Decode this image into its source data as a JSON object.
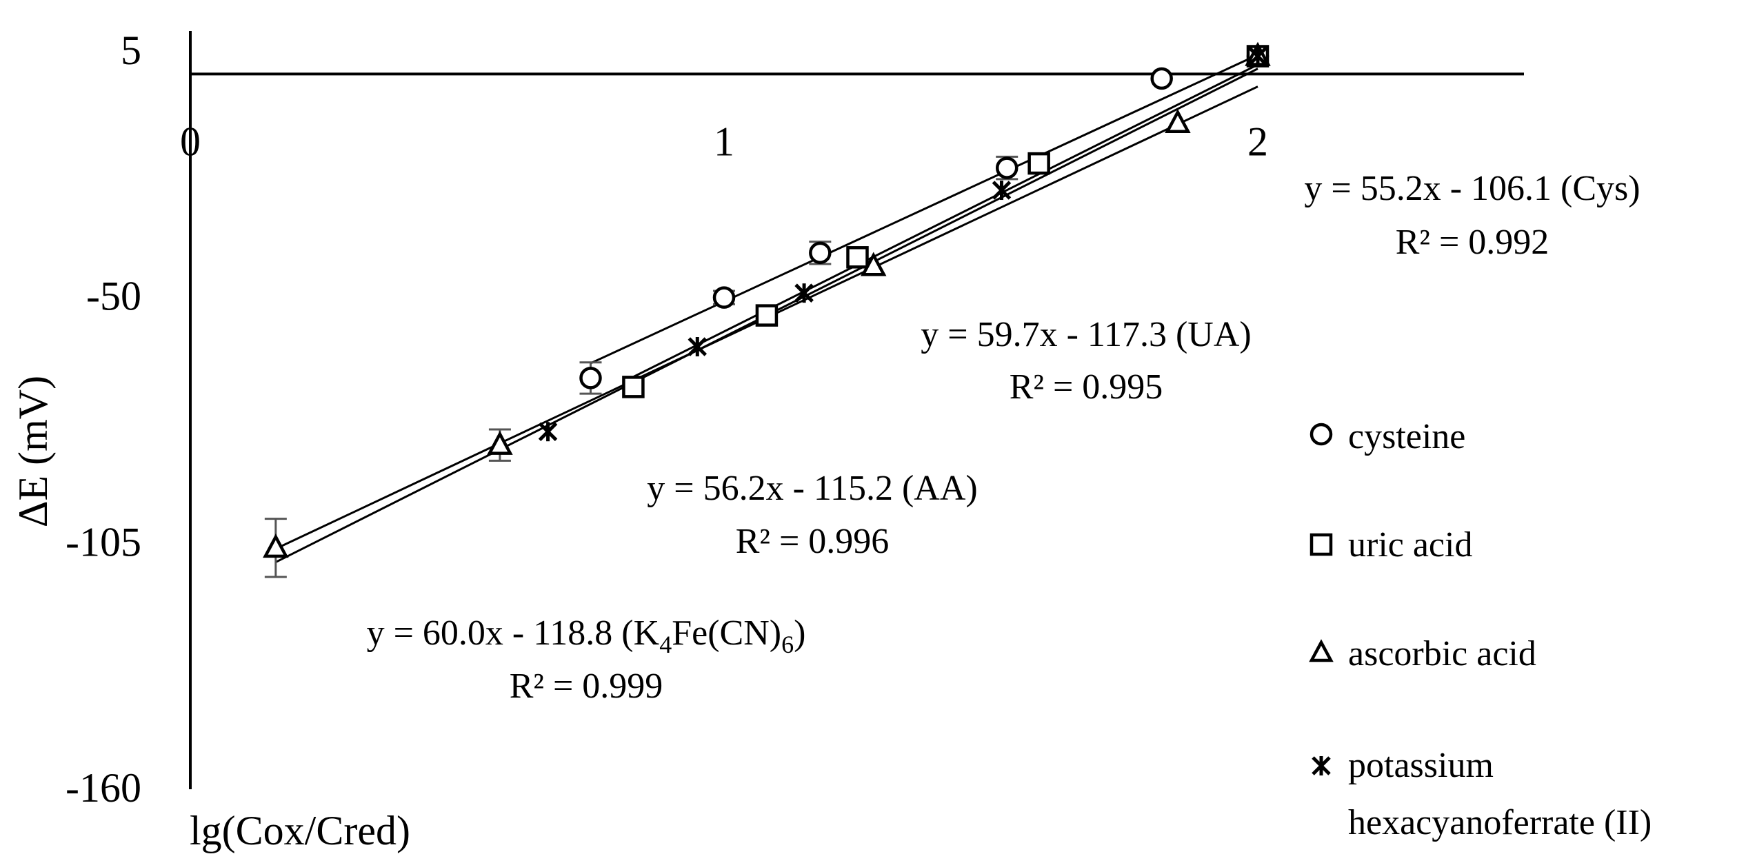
{
  "chart_data": {
    "type": "scatter",
    "title": "",
    "xlabel": "lg(Cox/Cred)",
    "ylabel": "ΔE (mV)",
    "xlim": [
      0,
      2.5
    ],
    "ylim": [
      -160,
      5
    ],
    "x_ticks": [
      "0",
      "1",
      "2"
    ],
    "x_tick_values": [
      0,
      1,
      2
    ],
    "y_ticks": [
      "5",
      "-50",
      "-105",
      "-160"
    ],
    "y_tick_values": [
      5,
      -50,
      -105,
      -160
    ],
    "grid": false,
    "legend_position": "right",
    "series": [
      {
        "name": "cysteine",
        "marker": "circle",
        "points": [
          {
            "x": 0.75,
            "y": -68,
            "err": 3.5
          },
          {
            "x": 1.0,
            "y": -50,
            "err": 1.5
          },
          {
            "x": 1.18,
            "y": -40,
            "err": 2.5
          },
          {
            "x": 1.53,
            "y": -21,
            "err": 2.5
          },
          {
            "x": 1.82,
            "y": -1,
            "err": 0
          },
          {
            "x": 2.0,
            "y": 4,
            "err": 0
          }
        ],
        "fit": {
          "slope": 55.2,
          "intercept": -106.1,
          "x_range": [
            0.75,
            2.0
          ]
        },
        "equation": "y = 55.2x - 106.1 (Cys)",
        "r2": "R² = 0.992"
      },
      {
        "name": "uric acid",
        "marker": "square",
        "points": [
          {
            "x": 0.83,
            "y": -70,
            "err": 0
          },
          {
            "x": 1.08,
            "y": -54,
            "err": 0
          },
          {
            "x": 1.25,
            "y": -41,
            "err": 1.5
          },
          {
            "x": 1.59,
            "y": -20,
            "err": 0
          },
          {
            "x": 2.0,
            "y": 4,
            "err": 0
          }
        ],
        "fit": {
          "slope": 59.7,
          "intercept": -117.3,
          "x_range": [
            0.83,
            2.0
          ]
        },
        "equation": "y = 59.7x - 117.3 (UA)",
        "r2": "R² = 0.995"
      },
      {
        "name": "ascorbic acid",
        "marker": "triangle",
        "points": [
          {
            "x": 0.16,
            "y": -106,
            "err": 6.5
          },
          {
            "x": 0.58,
            "y": -83,
            "err": 3.5
          },
          {
            "x": 1.28,
            "y": -43,
            "err": 0
          },
          {
            "x": 1.85,
            "y": -11,
            "err": 0
          },
          {
            "x": 2.0,
            "y": 4,
            "err": 0
          }
        ],
        "fit": {
          "slope": 56.2,
          "intercept": -115.2,
          "x_range": [
            0.16,
            2.0
          ]
        },
        "equation": "y = 56.2x - 115.2 (AA)",
        "r2": "R² = 0.996"
      },
      {
        "name": "potassium hexacyanoferrate (II)",
        "legend_lines": [
          "potassium",
          "hexacyanoferrate (II)"
        ],
        "marker": "asterisk",
        "points": [
          {
            "x": 0.67,
            "y": -80,
            "err": 0
          },
          {
            "x": 0.95,
            "y": -61,
            "err": 0
          },
          {
            "x": 1.15,
            "y": -49,
            "err": 0
          },
          {
            "x": 1.52,
            "y": -26,
            "err": 0
          },
          {
            "x": 2.0,
            "y": 4,
            "err": 0
          }
        ],
        "fit": {
          "slope": 60.0,
          "intercept": -118.8,
          "x_range": [
            0.16,
            2.0
          ]
        },
        "equation": "y = 60.0x - 118.8 (K4Fe(CN)6)",
        "equation_parts": {
          "prefix": "y = 60.0x - 118.8 (K",
          "sub1": "4",
          "mid": "Fe(CN)",
          "sub2": "6",
          "suffix": ")"
        },
        "r2": "R² = 0.999"
      }
    ]
  }
}
